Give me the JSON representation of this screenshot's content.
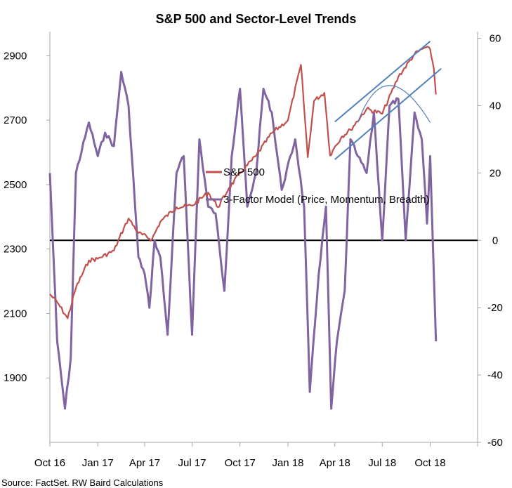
{
  "chart_data": {
    "type": "line",
    "title": "S&P 500 and Sector-Level Trends",
    "source": "Source: FactSet. RW Baird Calculations",
    "x_tick_labels": [
      "Oct 16",
      "Jan 17",
      "Apr 17",
      "Jul 17",
      "Oct 17",
      "Jan 18",
      "Apr 18",
      "Jul 18",
      "Oct 18"
    ],
    "x_range": [
      "2016-10-01",
      "2018-12-31"
    ],
    "left_axis": {
      "ticks": [
        2900,
        2700,
        2500,
        2300,
        2100,
        1900
      ],
      "ylim": [
        1700,
        2975
      ]
    },
    "right_axis": {
      "ticks": [
        60,
        40,
        20,
        0,
        -20,
        -40,
        -60
      ],
      "ylim": [
        -60,
        62
      ]
    },
    "legend": {
      "placement": "center-right"
    },
    "colors": {
      "sp500": "#c0504d",
      "model": "#8064a2",
      "channel": "#4f81bd",
      "zero": "#000000"
    },
    "series": [
      {
        "name": "S&P 500",
        "axis": "left",
        "x": [
          "2016-10-01",
          "2016-10-15",
          "2016-11-04",
          "2016-11-20",
          "2016-12-15",
          "2017-01-01",
          "2017-02-01",
          "2017-02-20",
          "2017-03-01",
          "2017-03-20",
          "2017-04-15",
          "2017-05-01",
          "2017-06-01",
          "2017-07-01",
          "2017-08-01",
          "2017-08-20",
          "2017-09-10",
          "2017-10-01",
          "2017-11-01",
          "2017-12-01",
          "2018-01-01",
          "2018-01-26",
          "2018-02-08",
          "2018-02-20",
          "2018-03-12",
          "2018-03-23",
          "2018-04-02",
          "2018-04-15",
          "2018-05-01",
          "2018-06-01",
          "2018-07-01",
          "2018-08-01",
          "2018-09-01",
          "2018-09-20",
          "2018-10-01",
          "2018-10-08",
          "2018-10-12"
        ],
        "values": [
          2160,
          2135,
          2085,
          2180,
          2265,
          2270,
          2295,
          2365,
          2395,
          2350,
          2330,
          2385,
          2430,
          2435,
          2475,
          2430,
          2490,
          2535,
          2590,
          2660,
          2700,
          2872,
          2585,
          2760,
          2785,
          2590,
          2620,
          2650,
          2670,
          2735,
          2720,
          2835,
          2905,
          2925,
          2920,
          2860,
          2780
        ]
      },
      {
        "name": "3-Factor Model (Price, Momentum, Breadth)",
        "axis": "right",
        "x": [
          "2016-10-01",
          "2016-10-15",
          "2016-10-30",
          "2016-11-10",
          "2016-11-20",
          "2016-12-15",
          "2017-01-01",
          "2017-01-15",
          "2017-02-01",
          "2017-02-15",
          "2017-03-01",
          "2017-03-20",
          "2017-04-01",
          "2017-04-10",
          "2017-04-20",
          "2017-05-01",
          "2017-05-15",
          "2017-06-01",
          "2017-06-15",
          "2017-07-01",
          "2017-07-15",
          "2017-08-01",
          "2017-08-15",
          "2017-09-01",
          "2017-09-15",
          "2017-10-01",
          "2017-10-15",
          "2017-11-01",
          "2017-11-15",
          "2017-12-01",
          "2017-12-20",
          "2018-01-15",
          "2018-02-01",
          "2018-02-12",
          "2018-03-01",
          "2018-03-15",
          "2018-03-25",
          "2018-04-05",
          "2018-04-20",
          "2018-05-01",
          "2018-05-15",
          "2018-06-01",
          "2018-06-15",
          "2018-07-01",
          "2018-07-15",
          "2018-08-01",
          "2018-08-15",
          "2018-09-01",
          "2018-09-15",
          "2018-09-25",
          "2018-10-01",
          "2018-10-08",
          "2018-10-12"
        ],
        "values": [
          20,
          -30,
          -50,
          -35,
          20,
          35,
          25,
          32,
          28,
          50,
          40,
          -5,
          -10,
          -20,
          0,
          -5,
          -28,
          20,
          25,
          -28,
          30,
          10,
          8,
          -15,
          25,
          45,
          10,
          20,
          45,
          38,
          15,
          30,
          10,
          -45,
          -10,
          10,
          -50,
          -30,
          -15,
          30,
          25,
          20,
          38,
          0,
          40,
          42,
          0,
          38,
          30,
          5,
          25,
          -10,
          -30
        ]
      }
    ],
    "channel_lines": [
      {
        "x": [
          "2018-04-01",
          "2018-10-01"
        ],
        "values": [
          2695,
          2945
        ]
      },
      {
        "x": [
          "2018-04-01",
          "2018-10-22"
        ],
        "values": [
          2578,
          2860
        ]
      }
    ],
    "arc": {
      "x": [
        "2018-05-15",
        "2018-07-15",
        "2018-10-01"
      ],
      "values": [
        35,
        46,
        35
      ]
    }
  }
}
